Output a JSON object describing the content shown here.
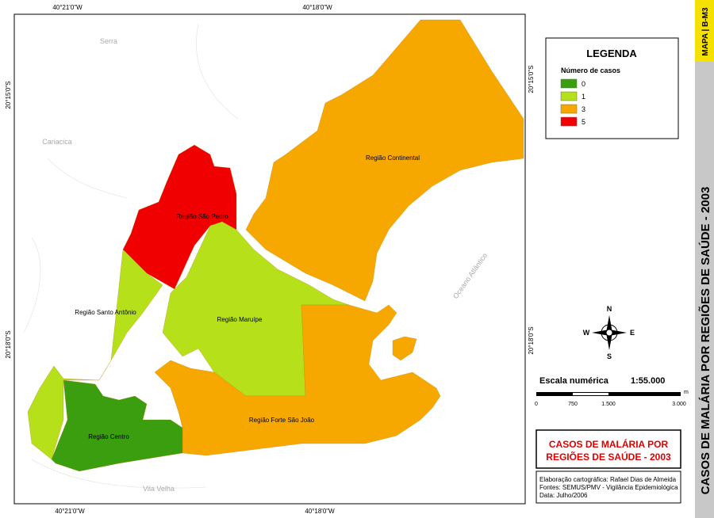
{
  "coordinates": {
    "top": [
      "40°21'0\"W",
      "40°18'0\"W"
    ],
    "bottom": [
      "40°21'0\"W",
      "40°18'0\"W"
    ],
    "left": [
      "20°15'0\"S",
      "20°18'0\"S"
    ],
    "right": [
      "20°15'0\"S",
      "20°18'0\"S"
    ]
  },
  "places": [
    "Serra",
    "Cariacica",
    "Vila Velha",
    "Oceano Atlântico"
  ],
  "regions": [
    "Região Continental",
    "Região São Pedro",
    "Região Santo Antônio",
    "Região Maruípe",
    "Região Forte São João",
    "Região Centro"
  ],
  "compass": {
    "n": "N",
    "s": "S",
    "e": "E",
    "w": "W"
  },
  "legend": {
    "title": "LEGENDA",
    "subtitle": "Número de casos",
    "items": [
      {
        "label": "0",
        "color": "#3a9e0e"
      },
      {
        "label": "1",
        "color": "#b5e01a"
      },
      {
        "label": "3",
        "color": "#f7a800"
      },
      {
        "label": "5",
        "color": "#f00000"
      }
    ]
  },
  "scale": {
    "label": "Escala numérica",
    "ratio": "1:55.000",
    "ticks": [
      "0",
      "750",
      "1.500",
      "3.000"
    ],
    "unit": "m"
  },
  "title_box": [
    "CASOS DE MALÁRIA POR",
    "REGIÕES DE SAÚDE - 2003"
  ],
  "credits": [
    "Elaboração cartográfica: Rafael Dias de Almeida",
    "Fontes: SEMUS/PMV - Vigilância Epidemiológica",
    "Data: Julho/2006"
  ],
  "sidebar": {
    "code": "MAPA | B-M3",
    "title": "CASOS DE MALÁRIA POR REGIÕES DE SAÚDE - 2003"
  }
}
